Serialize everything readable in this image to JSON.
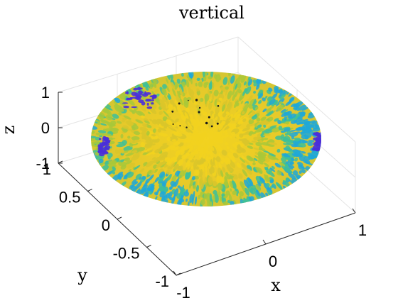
{
  "chart_data": {
    "type": "surface",
    "title": "vertical",
    "xlabel": "x",
    "ylabel": "y",
    "zlabel": "z",
    "xlim": [
      -1,
      1
    ],
    "ylim": [
      -1,
      1
    ],
    "zlim": [
      -1,
      1
    ],
    "x_ticks": [
      "-1",
      "0",
      "1"
    ],
    "y_ticks": [
      "-1",
      "-0.5",
      "0",
      "0.5",
      "1"
    ],
    "z_ticks": [
      "-1",
      "0",
      "1"
    ],
    "grid": true,
    "shape": "ellipsoid",
    "radii": {
      "x": 1,
      "y": 1,
      "z": 0.5
    },
    "colormap": [
      "#4a2fd9",
      "#1fa8d8",
      "#3cbf9a",
      "#a8c83a",
      "#d9c52a",
      "#f2d21e"
    ],
    "annotations": []
  }
}
